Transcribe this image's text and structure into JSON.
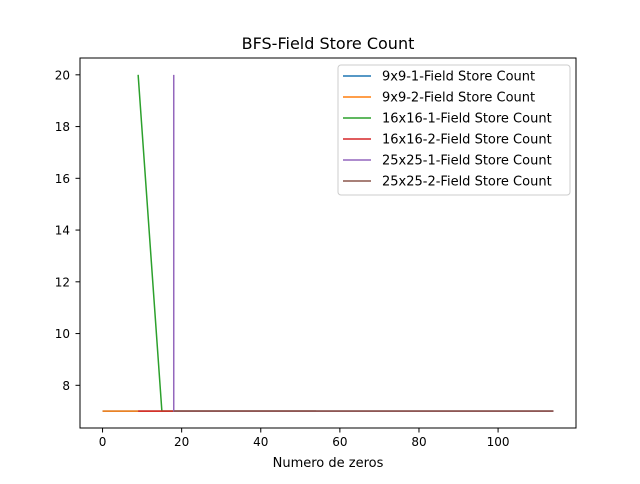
{
  "chart_data": {
    "type": "line",
    "title": "BFS-Field Store Count",
    "xlabel": "Numero de zeros",
    "ylabel": "",
    "xlim": [
      -5.7,
      119.7
    ],
    "ylim": [
      6.35,
      20.65
    ],
    "xticks": [
      0,
      20,
      40,
      60,
      80,
      100
    ],
    "xtick_labels": [
      "0",
      "20",
      "40",
      "60",
      "80",
      "100"
    ],
    "yticks": [
      8,
      10,
      12,
      14,
      16,
      18,
      20
    ],
    "ytick_labels": [
      "8",
      "10",
      "12",
      "14",
      "16",
      "18",
      "20"
    ],
    "grid": false,
    "legend_position": "top-right",
    "series": [
      {
        "name": "9x9-1-Field Store Count",
        "color": "#1f77b4",
        "x": [
          0,
          9,
          18,
          27,
          36,
          45,
          54
        ],
        "y": [
          7,
          7,
          7,
          7,
          7,
          7,
          7
        ]
      },
      {
        "name": "9x9-2-Field Store Count",
        "color": "#ff7f0e",
        "x": [
          0,
          9,
          18,
          27,
          36,
          45,
          54
        ],
        "y": [
          7,
          7,
          7,
          7,
          7,
          7,
          7
        ]
      },
      {
        "name": "16x16-1-Field Store Count",
        "color": "#2ca02c",
        "x": [
          9,
          15,
          20,
          30,
          40,
          50,
          60,
          70,
          80,
          90,
          100,
          110,
          114
        ],
        "y": [
          20,
          7,
          7,
          7,
          7,
          7,
          7,
          7,
          7,
          7,
          7,
          7,
          7
        ]
      },
      {
        "name": "16x16-2-Field Store Count",
        "color": "#d62728",
        "x": [
          9,
          20,
          30,
          40,
          50,
          60,
          70,
          80,
          90,
          100,
          110,
          114
        ],
        "y": [
          7,
          7,
          7,
          7,
          7,
          7,
          7,
          7,
          7,
          7,
          7,
          7
        ]
      },
      {
        "name": "25x25-1-Field Store Count",
        "color": "#9467bd",
        "x": [
          18,
          18,
          30,
          40,
          50,
          60,
          70,
          80,
          90,
          100,
          110,
          114
        ],
        "y": [
          20,
          7,
          7,
          7,
          7,
          7,
          7,
          7,
          7,
          7,
          7,
          7
        ]
      },
      {
        "name": "25x25-2-Field Store Count",
        "color": "#8c564b",
        "x": [
          18,
          30,
          40,
          50,
          60,
          70,
          80,
          90,
          100,
          110,
          114
        ],
        "y": [
          7,
          7,
          7,
          7,
          7,
          7,
          7,
          7,
          7,
          7,
          7
        ]
      }
    ]
  }
}
